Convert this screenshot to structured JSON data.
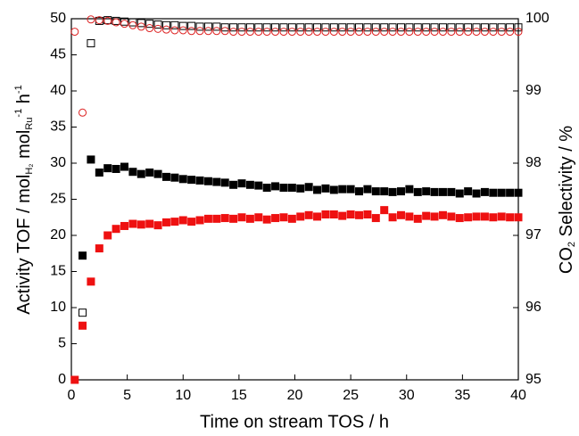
{
  "chart_data": {
    "type": "scatter",
    "xlabel": "Time on stream TOS / h",
    "ylabel_parts": [
      "Activity TOF / mol",
      "H₂",
      " mol",
      "Ru",
      "-1",
      " h",
      "-1"
    ],
    "y2label_parts": [
      "CO",
      "2",
      " Selectivity / %"
    ],
    "xlim": [
      0,
      40
    ],
    "xticks": [
      0,
      5,
      10,
      15,
      20,
      25,
      30,
      35,
      40
    ],
    "ylim": [
      0,
      50
    ],
    "yticks": [
      0,
      5,
      10,
      15,
      20,
      25,
      30,
      35,
      40,
      45,
      50
    ],
    "y2lim": [
      95,
      100
    ],
    "y2ticks": [
      95,
      96,
      97,
      98,
      99,
      100
    ],
    "series": [
      {
        "color": "#000000",
        "marker": "square",
        "filled": true,
        "axis": "y",
        "x": [
          1,
          1.75,
          2.5,
          3.25,
          4,
          4.75,
          5.5,
          6.25,
          7,
          7.75,
          8.5,
          9.25,
          10,
          10.75,
          11.5,
          12.25,
          13,
          13.75,
          14.5,
          15.25,
          16,
          16.75,
          17.5,
          18.25,
          19,
          19.75,
          20.5,
          21.25,
          22,
          22.75,
          23.5,
          24.25,
          25,
          25.75,
          26.5,
          27.25,
          28,
          28.75,
          29.5,
          30.25,
          31,
          31.75,
          32.5,
          33.25,
          34,
          34.75,
          35.5,
          36.25,
          37,
          37.75,
          38.5,
          39.25,
          40
        ],
        "values": [
          17.2,
          30.5,
          28.7,
          29.3,
          29.2,
          29.5,
          28.8,
          28.5,
          28.7,
          28.5,
          28.1,
          28.0,
          27.8,
          27.7,
          27.6,
          27.5,
          27.4,
          27.3,
          27.0,
          27.2,
          27.0,
          26.9,
          26.6,
          26.8,
          26.6,
          26.6,
          26.5,
          26.7,
          26.3,
          26.5,
          26.3,
          26.4,
          26.4,
          26.1,
          26.4,
          26.1,
          26.1,
          26.0,
          26.1,
          26.4,
          26.0,
          26.1,
          26.0,
          26.0,
          26.0,
          25.8,
          26.1,
          25.8,
          26.0,
          25.9,
          25.9,
          25.9,
          25.9
        ]
      },
      {
        "color": "#ee1111",
        "marker": "square",
        "filled": true,
        "axis": "y",
        "x": [
          0.3,
          1,
          1.75,
          2.5,
          3.25,
          4,
          4.75,
          5.5,
          6.25,
          7,
          7.75,
          8.5,
          9.25,
          10,
          10.75,
          11.5,
          12.25,
          13,
          13.75,
          14.5,
          15.25,
          16,
          16.75,
          17.5,
          18.25,
          19,
          19.75,
          20.5,
          21.25,
          22,
          22.75,
          23.5,
          24.25,
          25,
          25.75,
          26.5,
          27.25,
          28,
          28.75,
          29.5,
          30.25,
          31,
          31.75,
          32.5,
          33.25,
          34,
          34.75,
          35.5,
          36.25,
          37,
          37.75,
          38.5,
          39.25,
          40
        ],
        "values": [
          0,
          7.5,
          13.6,
          18.2,
          20.0,
          20.9,
          21.3,
          21.6,
          21.5,
          21.6,
          21.4,
          21.8,
          21.9,
          22.1,
          21.9,
          22.1,
          22.3,
          22.3,
          22.4,
          22.3,
          22.5,
          22.3,
          22.5,
          22.2,
          22.4,
          22.5,
          22.3,
          22.6,
          22.8,
          22.6,
          22.9,
          22.9,
          22.7,
          22.9,
          22.8,
          22.9,
          22.4,
          23.5,
          22.5,
          22.8,
          22.6,
          22.3,
          22.7,
          22.6,
          22.8,
          22.6,
          22.4,
          22.5,
          22.6,
          22.6,
          22.5,
          22.6,
          22.5,
          22.5
        ]
      },
      {
        "color": "#000000",
        "marker": "square",
        "filled": false,
        "axis": "y2",
        "x": [
          1,
          1.75,
          2.5,
          3.25,
          4,
          4.75,
          5.5,
          6.25,
          7,
          7.75,
          8.5,
          9.25,
          10,
          10.75,
          11.5,
          12.25,
          13,
          13.75,
          14.5,
          15.25,
          16,
          16.75,
          17.5,
          18.25,
          19,
          19.75,
          20.5,
          21.25,
          22,
          22.75,
          23.5,
          24.25,
          25,
          25.75,
          26.5,
          27.25,
          28,
          28.75,
          29.5,
          30.25,
          31,
          31.75,
          32.5,
          33.25,
          34,
          34.75,
          35.5,
          36.25,
          37,
          37.75,
          38.5,
          39.25,
          40
        ],
        "values": [
          95.93,
          99.66,
          99.97,
          99.98,
          99.97,
          99.96,
          99.95,
          99.94,
          99.93,
          99.92,
          99.91,
          99.91,
          99.9,
          99.9,
          99.89,
          99.89,
          99.89,
          99.88,
          99.88,
          99.88,
          99.88,
          99.88,
          99.88,
          99.88,
          99.88,
          99.88,
          99.88,
          99.88,
          99.88,
          99.88,
          99.88,
          99.88,
          99.88,
          99.88,
          99.88,
          99.88,
          99.88,
          99.88,
          99.88,
          99.88,
          99.88,
          99.88,
          99.88,
          99.88,
          99.88,
          99.88,
          99.88,
          99.88,
          99.88,
          99.88,
          99.88,
          99.88,
          99.88
        ]
      },
      {
        "color": "#dd2222",
        "marker": "circle",
        "filled": false,
        "axis": "y2",
        "x": [
          0.3,
          1,
          1.75,
          2.5,
          3.25,
          4,
          4.75,
          5.5,
          6.25,
          7,
          7.75,
          8.5,
          9.25,
          10,
          10.75,
          11.5,
          12.25,
          13,
          13.75,
          14.5,
          15.25,
          16,
          16.75,
          17.5,
          18.25,
          19,
          19.75,
          20.5,
          21.25,
          22,
          22.75,
          23.5,
          24.25,
          25,
          25.75,
          26.5,
          27.25,
          28,
          28.75,
          29.5,
          30.25,
          31,
          31.75,
          32.5,
          33.25,
          34,
          34.75,
          35.5,
          36.25,
          37,
          37.75,
          38.5,
          39.25,
          40
        ],
        "values": [
          99.82,
          98.7,
          99.99,
          99.98,
          99.97,
          99.95,
          99.93,
          99.91,
          99.89,
          99.87,
          99.86,
          99.85,
          99.84,
          99.84,
          99.83,
          99.83,
          99.83,
          99.83,
          99.83,
          99.82,
          99.82,
          99.82,
          99.82,
          99.82,
          99.82,
          99.82,
          99.82,
          99.82,
          99.82,
          99.82,
          99.82,
          99.82,
          99.82,
          99.82,
          99.82,
          99.82,
          99.82,
          99.82,
          99.82,
          99.82,
          99.82,
          99.82,
          99.82,
          99.82,
          99.82,
          99.82,
          99.82,
          99.82,
          99.82,
          99.82,
          99.82,
          99.82,
          99.82,
          99.82
        ]
      }
    ]
  }
}
